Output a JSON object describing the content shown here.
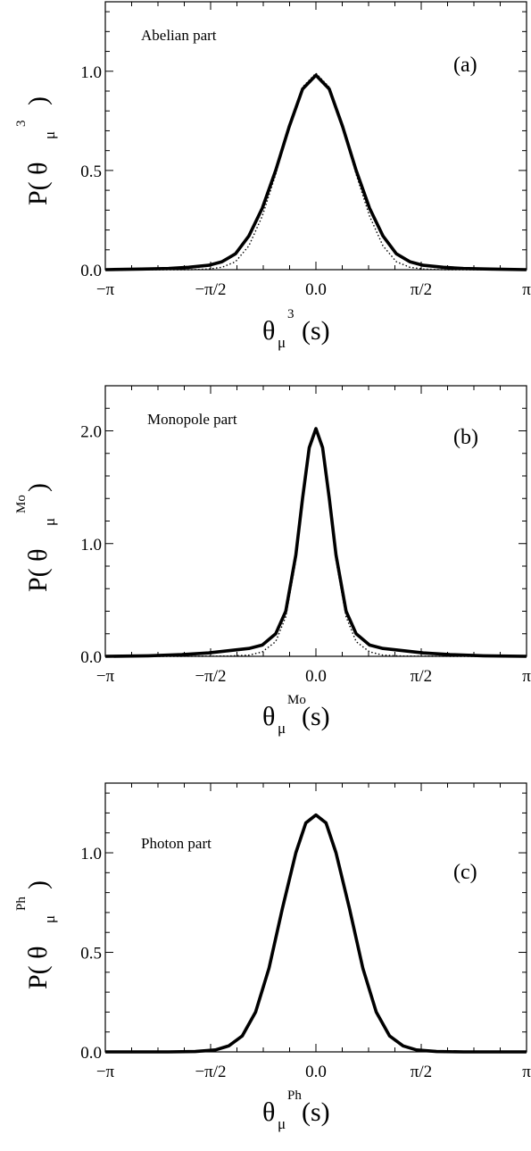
{
  "chart_data": [
    {
      "type": "line",
      "annotation": "Abelian part",
      "panel_label": "(a)",
      "xlabel": {
        "main": "θ",
        "sub": "μ",
        "sup": "3",
        "tail": "(s)"
      },
      "ylabel": {
        "main": "P( θ",
        "sub": "μ",
        "sup": "3",
        "tail": " )"
      },
      "x_tick_labels": [
        "−π",
        "−π/2",
        "0.0",
        "π/2",
        "π"
      ],
      "xlim": [
        -3.1416,
        3.1416
      ],
      "y_ticks": [
        0.0,
        0.5,
        1.0
      ],
      "y_tick_labels": [
        "0.0",
        "0.5",
        "1.0"
      ],
      "ylim": [
        0,
        1.35
      ],
      "series": [
        {
          "style": "solid",
          "x": [
            -3.14,
            -2.6,
            -2.2,
            -1.9,
            -1.6,
            -1.4,
            -1.2,
            -1.0,
            -0.8,
            -0.6,
            -0.4,
            -0.2,
            0.0,
            0.2,
            0.4,
            0.6,
            0.8,
            1.0,
            1.2,
            1.4,
            1.6,
            1.9,
            2.2,
            2.6,
            3.14
          ],
          "y": [
            0.0,
            0.003,
            0.006,
            0.012,
            0.022,
            0.04,
            0.08,
            0.17,
            0.31,
            0.5,
            0.72,
            0.91,
            0.98,
            0.91,
            0.72,
            0.5,
            0.31,
            0.17,
            0.08,
            0.04,
            0.022,
            0.012,
            0.006,
            0.003,
            0.0
          ]
        },
        {
          "style": "dotted",
          "x": [
            -3.14,
            -2.6,
            -2.2,
            -1.9,
            -1.6,
            -1.4,
            -1.2,
            -1.0,
            -0.8,
            -0.6,
            -0.4,
            -0.2,
            0.0,
            0.2,
            0.4,
            0.6,
            0.8,
            1.0,
            1.2,
            1.4,
            1.6,
            1.9,
            2.2,
            2.6,
            3.14
          ],
          "y": [
            0.0,
            0.0,
            0.0,
            0.0,
            0.003,
            0.012,
            0.04,
            0.12,
            0.27,
            0.48,
            0.72,
            0.92,
            0.99,
            0.92,
            0.72,
            0.48,
            0.27,
            0.12,
            0.04,
            0.012,
            0.003,
            0.0,
            0.0,
            0.0,
            0.0
          ]
        }
      ]
    },
    {
      "type": "line",
      "annotation": "Monopole part",
      "panel_label": "(b)",
      "xlabel": {
        "main": "θ",
        "sub": "μ",
        "sup": "Mo",
        "tail": "(s)"
      },
      "ylabel": {
        "main": "P( θ",
        "sub": "μ",
        "sup": "Mo",
        "tail": " )"
      },
      "x_tick_labels": [
        "−π",
        "−π/2",
        "0.0",
        "π/2",
        "π"
      ],
      "xlim": [
        -3.1416,
        3.1416
      ],
      "y_ticks": [
        0.0,
        1.0,
        2.0
      ],
      "y_tick_labels": [
        "0.0",
        "1.0",
        "2.0"
      ],
      "ylim": [
        0,
        2.4
      ],
      "series": [
        {
          "style": "solid",
          "x": [
            -3.14,
            -2.5,
            -2.0,
            -1.6,
            -1.3,
            -1.0,
            -0.8,
            -0.6,
            -0.45,
            -0.3,
            -0.2,
            -0.1,
            0.0,
            0.1,
            0.2,
            0.3,
            0.45,
            0.6,
            0.8,
            1.0,
            1.3,
            1.6,
            2.0,
            2.5,
            3.14
          ],
          "y": [
            0.0,
            0.005,
            0.015,
            0.03,
            0.05,
            0.07,
            0.1,
            0.2,
            0.4,
            0.9,
            1.4,
            1.85,
            2.02,
            1.85,
            1.4,
            0.9,
            0.4,
            0.2,
            0.1,
            0.07,
            0.05,
            0.03,
            0.015,
            0.005,
            0.0
          ]
        },
        {
          "style": "dotted",
          "x": [
            -3.14,
            -2.0,
            -1.3,
            -1.0,
            -0.8,
            -0.6,
            -0.45,
            -0.3,
            -0.2,
            -0.1,
            0.0,
            0.1,
            0.2,
            0.3,
            0.45,
            0.6,
            0.8,
            1.0,
            1.3,
            2.0,
            3.14
          ],
          "y": [
            0.0,
            0.0,
            0.002,
            0.01,
            0.04,
            0.13,
            0.35,
            0.85,
            1.38,
            1.85,
            2.02,
            1.85,
            1.38,
            0.85,
            0.35,
            0.13,
            0.04,
            0.01,
            0.002,
            0.0,
            0.0
          ]
        }
      ]
    },
    {
      "type": "line",
      "annotation": "Photon part",
      "panel_label": "(c)",
      "xlabel": {
        "main": "θ",
        "sub": "μ",
        "sup": "Ph",
        "tail": "(s)"
      },
      "ylabel": {
        "main": "P( θ",
        "sub": "μ",
        "sup": "Ph",
        "tail": " )"
      },
      "x_tick_labels": [
        "−π",
        "−π/2",
        "0.0",
        "π/2",
        "π"
      ],
      "xlim": [
        -3.1416,
        3.1416
      ],
      "y_ticks": [
        0.0,
        0.5,
        1.0
      ],
      "y_tick_labels": [
        "0.0",
        "0.5",
        "1.0"
      ],
      "ylim": [
        0,
        1.35
      ],
      "series": [
        {
          "style": "solid",
          "x": [
            -3.14,
            -2.2,
            -1.8,
            -1.5,
            -1.3,
            -1.1,
            -0.9,
            -0.7,
            -0.5,
            -0.3,
            -0.15,
            0.0,
            0.15,
            0.3,
            0.5,
            0.7,
            0.9,
            1.1,
            1.3,
            1.5,
            1.8,
            2.2,
            3.14
          ],
          "y": [
            0.0,
            0.0,
            0.002,
            0.01,
            0.03,
            0.08,
            0.2,
            0.42,
            0.72,
            1.0,
            1.15,
            1.19,
            1.15,
            1.0,
            0.72,
            0.42,
            0.2,
            0.08,
            0.03,
            0.01,
            0.002,
            0.0,
            0.0
          ]
        }
      ]
    }
  ]
}
